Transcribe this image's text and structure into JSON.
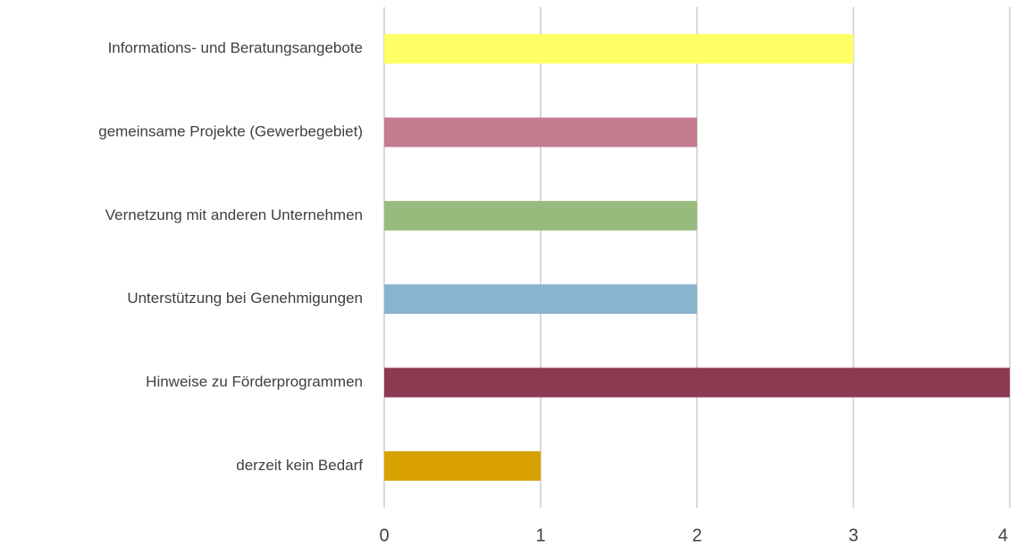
{
  "chart_data": {
    "type": "bar",
    "orientation": "horizontal",
    "categories": [
      "Informations- und Beratungsangebote",
      "gemeinsame Projekte (Gewerbegebiet)",
      "Vernetzung mit anderen Unternehmen",
      "Unterstützung bei Genehmigungen",
      "Hinweise zu Förderprogrammen",
      "derzeit kein Bedarf"
    ],
    "values": [
      3,
      2,
      2,
      2,
      4,
      1
    ],
    "colors": [
      "#ffff66",
      "#c47c8e",
      "#97bb7c",
      "#8ab3cf",
      "#8b3a52",
      "#d9a100"
    ],
    "xlim": [
      0,
      4
    ],
    "xticks": [
      0,
      1,
      2,
      3,
      4
    ],
    "grid": true
  }
}
